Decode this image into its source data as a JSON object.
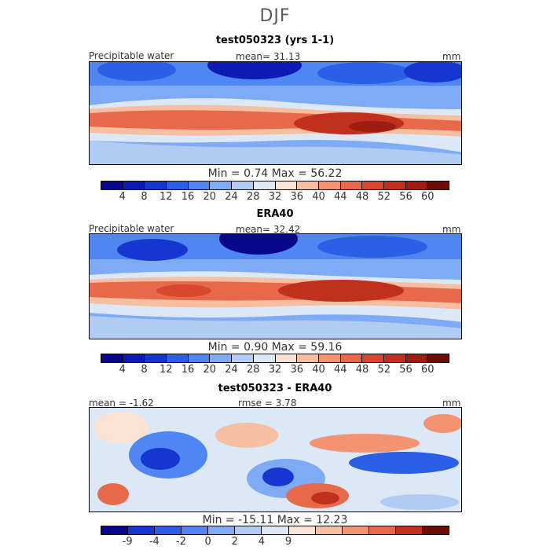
{
  "figure": {
    "season": "DJF"
  },
  "palette": {
    "full": [
      "#08088c",
      "#0d1ab4",
      "#1537d0",
      "#2a5fe6",
      "#4f86f2",
      "#7faaf5",
      "#b0ccf5",
      "#dde8f7",
      "#fbe2d2",
      "#f7bfa1",
      "#f29372",
      "#e8694a",
      "#d8472e",
      "#c1301e",
      "#9e1d12",
      "#6e0d06"
    ],
    "diff": [
      "#08088c",
      "#1537d0",
      "#2a5fe6",
      "#4f86f2",
      "#7faaf5",
      "#b0ccf5",
      "#dde8f7",
      "#fbe2d2",
      "#f7bfa1",
      "#f29372",
      "#e8694a",
      "#c1301e",
      "#6e0d06"
    ]
  },
  "panels": [
    {
      "title": "test050323 (yrs 1-1)",
      "left_label": "Precipitable water",
      "center_label": "mean=  31.13",
      "units": "mm",
      "min_max": "Min =   0.74  Max =  56.22",
      "ticks": [
        "4",
        "8",
        "12",
        "16",
        "20",
        "24",
        "28",
        "32",
        "36",
        "40",
        "44",
        "48",
        "52",
        "56",
        "60"
      ],
      "chart_data": {
        "type": "heatmap",
        "title": "test050323 (yrs 1-1)",
        "variable": "Precipitable water",
        "units": "mm",
        "mean": 31.13,
        "min": 0.74,
        "max": 56.22,
        "contour_levels": [
          4,
          8,
          12,
          16,
          20,
          24,
          28,
          32,
          36,
          40,
          44,
          48,
          52,
          56,
          60
        ]
      }
    },
    {
      "title": "ERA40",
      "left_label": "Precipitable water",
      "center_label": "mean=  32.42",
      "units": "mm",
      "min_max": "Min =   0.90  Max =  59.16",
      "ticks": [
        "4",
        "8",
        "12",
        "16",
        "20",
        "24",
        "28",
        "32",
        "36",
        "40",
        "44",
        "48",
        "52",
        "56",
        "60"
      ],
      "chart_data": {
        "type": "heatmap",
        "title": "ERA40",
        "variable": "Precipitable water",
        "units": "mm",
        "mean": 32.42,
        "min": 0.9,
        "max": 59.16,
        "contour_levels": [
          4,
          8,
          12,
          16,
          20,
          24,
          28,
          32,
          36,
          40,
          44,
          48,
          52,
          56,
          60
        ]
      }
    },
    {
      "title": "test050323 - ERA40",
      "left_label": "mean =  -1.62",
      "center_label": "rmse =   3.78",
      "units": "mm",
      "min_max": "Min = -15.11  Max =  12.23",
      "ticks": [
        "-9",
        "-4",
        "-2",
        "0",
        "2",
        "4",
        "9"
      ],
      "chart_data": {
        "type": "heatmap",
        "title": "test050323 - ERA40",
        "units": "mm",
        "mean": -1.62,
        "rmse": 3.78,
        "min": -15.11,
        "max": 12.23,
        "contour_levels": [
          -9,
          -4,
          -2,
          0,
          2,
          4,
          9
        ]
      }
    }
  ]
}
